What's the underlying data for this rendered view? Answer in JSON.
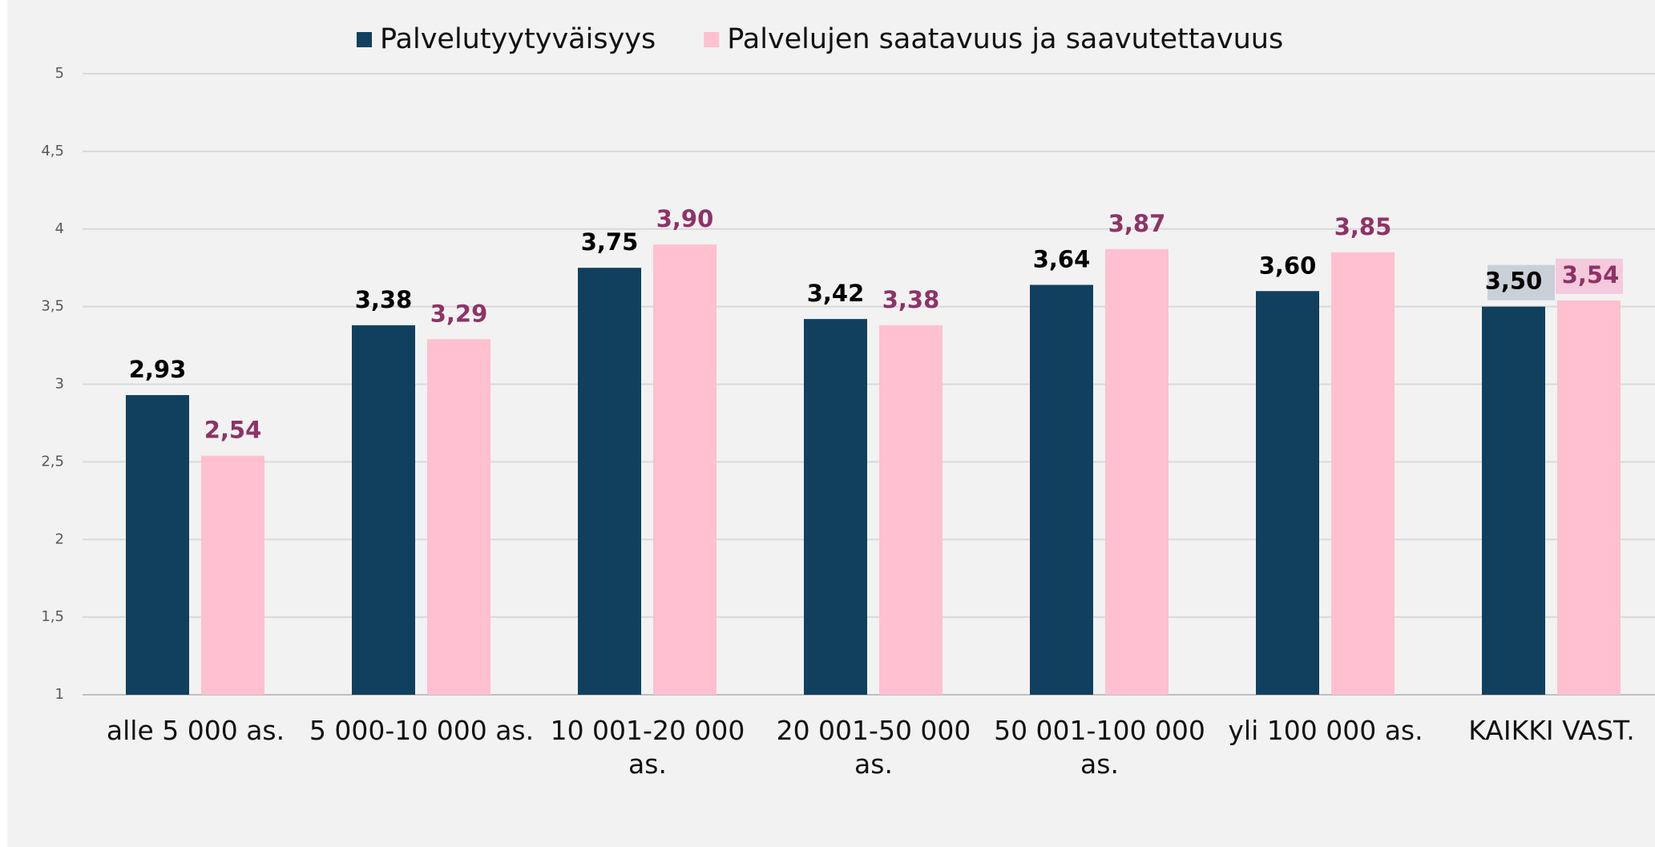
{
  "chart_data": {
    "type": "bar",
    "categories": [
      "alle 5 000 as.",
      "5 000-10 000 as.",
      "10 001-20 000 as.",
      "20 001-50 000 as.",
      "50 001-100 000 as.",
      "yli 100 000 as.",
      "KAIKKI VAST."
    ],
    "series": [
      {
        "name": "Palvelutyytyväisyys",
        "color": "#11405f",
        "label_color": "#000000",
        "values": [
          2.93,
          3.38,
          3.75,
          3.42,
          3.64,
          3.6,
          3.5
        ],
        "value_labels": [
          "2,93",
          "3,38",
          "3,75",
          "3,42",
          "3,64",
          "3,60",
          "3,50"
        ]
      },
      {
        "name": "Palvelujen saatavuus ja saavutettavuus",
        "color": "#ffc0cf",
        "label_color": "#8e3366",
        "values": [
          2.54,
          3.29,
          3.9,
          3.38,
          3.87,
          3.85,
          3.54
        ],
        "value_labels": [
          "2,54",
          "3,29",
          "3,90",
          "3,38",
          "3,87",
          "3,85",
          "3,54"
        ]
      }
    ],
    "ylim": [
      1,
      5
    ],
    "yticks": [
      1,
      {
        "value": 1.5,
        "label": "1,5"
      },
      2,
      {
        "value": 2.5,
        "label": "2,5"
      },
      3,
      {
        "value": 3.5,
        "label": "3,5"
      },
      4,
      {
        "value": 4.5,
        "label": "4,5"
      },
      5
    ],
    "grid": true,
    "legend": "top"
  }
}
